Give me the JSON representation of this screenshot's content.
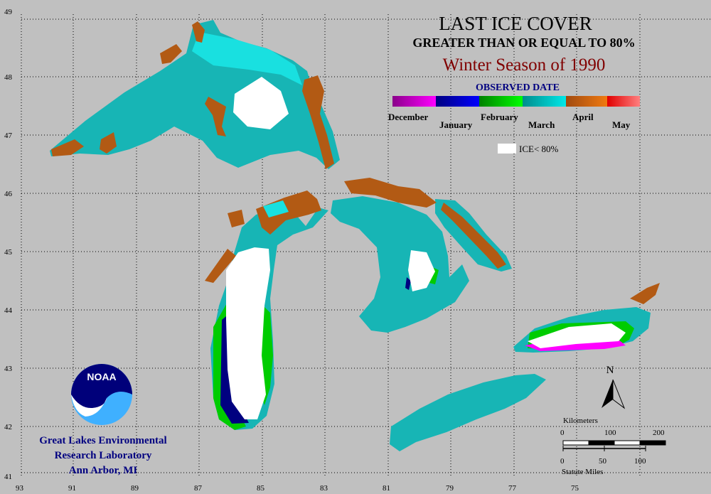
{
  "title": {
    "line1": "LAST ICE COVER",
    "line2": "GREATER THAN OR EQUAL TO 80%",
    "line3": "Winter Season of 1990"
  },
  "legend": {
    "heading": "OBSERVED DATE",
    "segments": [
      {
        "from": "#8a008a",
        "to": "#ff00ff"
      },
      {
        "from": "#000080",
        "to": "#0000ff"
      },
      {
        "from": "#008000",
        "to": "#00ff00"
      },
      {
        "from": "#008c8c",
        "to": "#00e8e8"
      },
      {
        "from": "#a04a10",
        "to": "#f07a10"
      },
      {
        "from": "#e00000",
        "to": "#ff8080"
      }
    ],
    "labels": [
      "December",
      "January",
      "February",
      "March",
      "April",
      "May"
    ],
    "ice_label": "ICE< 80%"
  },
  "axes": {
    "lon": [
      "93",
      "91",
      "89",
      "87",
      "85",
      "83",
      "81",
      "79",
      "77",
      "75"
    ],
    "lat": [
      "49",
      "48",
      "47",
      "46",
      "45",
      "44",
      "43",
      "42",
      "41"
    ]
  },
  "north_label": "N",
  "scale": {
    "km_title": "Kilometers",
    "km_ticks": [
      "0",
      "100",
      "200"
    ],
    "mi_ticks": [
      "0",
      "50",
      "100"
    ],
    "mi_title": "Statute Miles"
  },
  "logo_text": "NOAA",
  "organization": [
    "Great Lakes Environmental",
    "Research Laboratory",
    "Ann Arbor, MI"
  ],
  "colors": {
    "background": "#c0c0c0",
    "march": "#17b5b5",
    "march_light": "#19e0e0",
    "april": "#b25a14",
    "january": "#000080",
    "february": "#00cc00",
    "december": "#ff00ff",
    "ice_below": "#ffffff",
    "title_text": "#000000",
    "subtitle_text": "#800000",
    "heading_text": "#000080"
  }
}
